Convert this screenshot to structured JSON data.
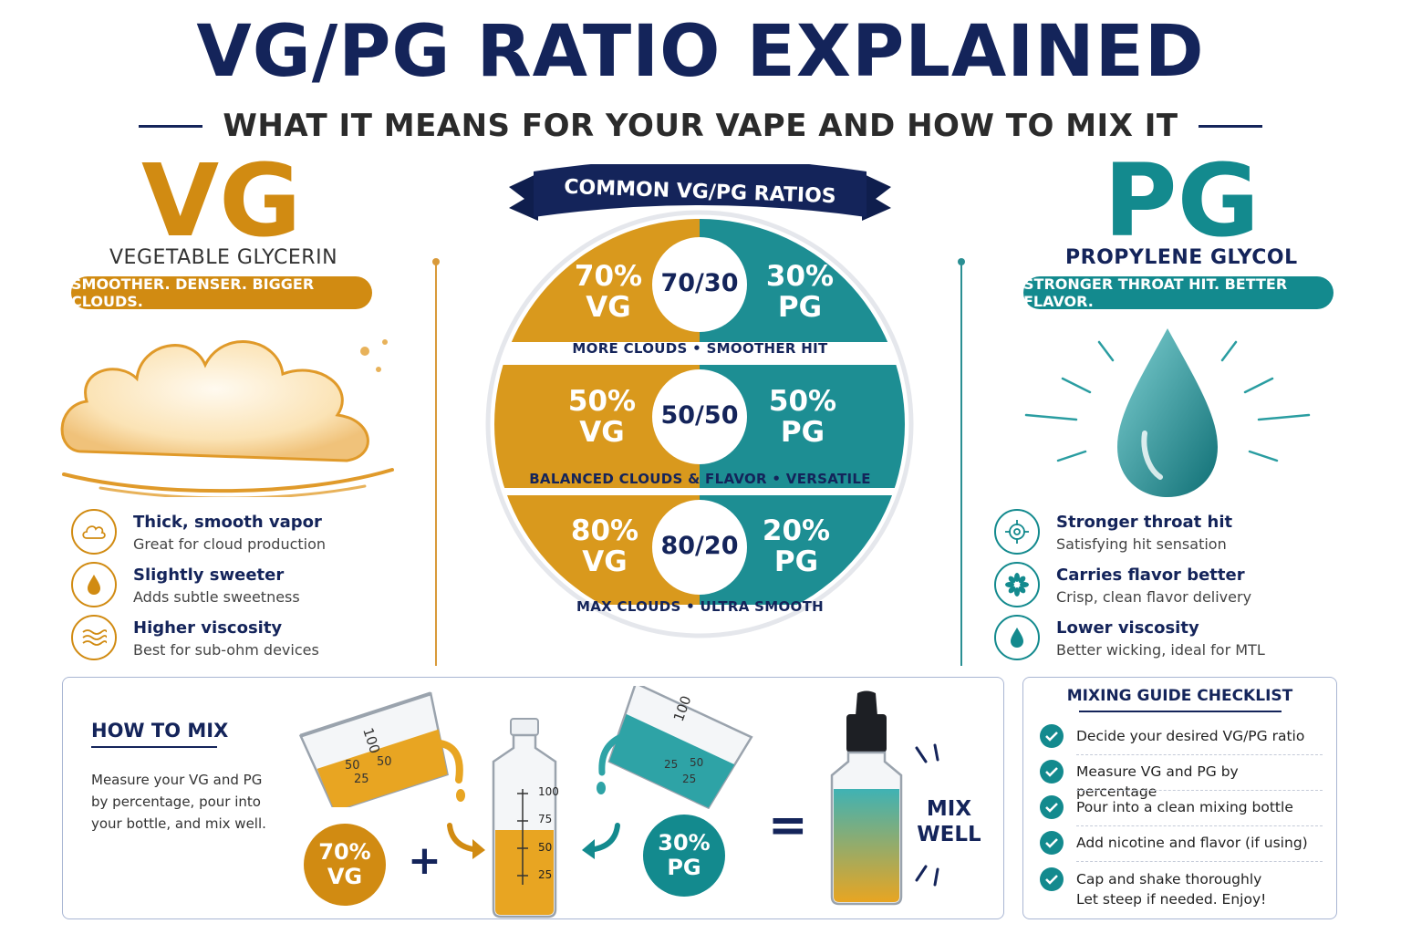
{
  "title": "VG/PG RATIO EXPLAINED",
  "subtitle": "WHAT IT MEANS FOR YOUR VAPE AND HOW TO MIX IT",
  "vg": {
    "abbr": "VG",
    "name": "VEGETABLE GLYCERIN",
    "tagline": "SMOOTHER. DENSER. BIGGER CLOUDS.",
    "features": [
      {
        "icon": "cloud-icon",
        "title": "Thick, smooth vapor",
        "desc": "Great for cloud production"
      },
      {
        "icon": "droplet-icon",
        "title": "Slightly sweeter",
        "desc": "Adds subtle sweetness"
      },
      {
        "icon": "wave-icon",
        "title": "Higher viscosity",
        "desc": "Best for sub-ohm devices"
      }
    ]
  },
  "pg": {
    "abbr": "PG",
    "name": "PROPYLENE GLYCOL",
    "tagline": "STRONGER THROAT HIT. BETTER FLAVOR.",
    "features": [
      {
        "icon": "target-icon",
        "title": "Stronger throat hit",
        "desc": "Satisfying hit sensation"
      },
      {
        "icon": "flower-icon",
        "title": "Carries flavor better",
        "desc": "Crisp, clean flavor delivery"
      },
      {
        "icon": "droplet-icon",
        "title": "Lower viscosity",
        "desc": "Better wicking, ideal for MTL"
      }
    ]
  },
  "ratios": {
    "banner": "COMMON VG/PG RATIOS",
    "rows": [
      {
        "vg": "70%",
        "vg_unit": "VG",
        "ratio": "70/30",
        "pg": "30%",
        "pg_unit": "PG",
        "caption": "MORE CLOUDS • SMOOTHER HIT"
      },
      {
        "vg": "50%",
        "vg_unit": "VG",
        "ratio": "50/50",
        "pg": "50%",
        "pg_unit": "PG",
        "caption": "BALANCED CLOUDS & FLAVOR • VERSATILE"
      },
      {
        "vg": "80%",
        "vg_unit": "VG",
        "ratio": "80/20",
        "pg": "20%",
        "pg_unit": "PG",
        "caption": "MAX CLOUDS • ULTRA SMOOTH"
      }
    ]
  },
  "how_to_mix": {
    "heading": "HOW TO MIX",
    "text": "Measure your VG and PG by percentage, pour into your bottle, and mix well.",
    "vg_badge": {
      "pct": "70%",
      "unit": "VG"
    },
    "pg_badge": {
      "pct": "30%",
      "unit": "PG"
    },
    "plus": "+",
    "equals": "=",
    "mix_well": "MIX WELL",
    "beaker_left_marks": [
      "100",
      "50",
      "50",
      "25"
    ],
    "bottle_marks": [
      "100",
      "75",
      "50",
      "25"
    ],
    "beaker_right_marks": [
      "100",
      "25",
      "50",
      "25"
    ]
  },
  "checklist": {
    "heading": "MIXING GUIDE CHECKLIST",
    "items": [
      "Decide your desired VG/PG ratio",
      "Measure VG and PG by percentage",
      "Pour into a clean mixing bottle",
      "Add nicotine and flavor (if using)",
      "Cap and shake thoroughly"
    ],
    "last_note": "Let steep if needed. Enjoy!"
  },
  "colors": {
    "navy": "#14245a",
    "gold": "#d18b12",
    "teal": "#138a8e"
  }
}
